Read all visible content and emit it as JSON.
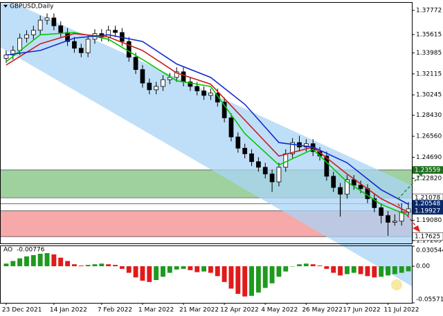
{
  "chart_data": [
    {
      "type": "candlestick",
      "title": "GBPUSD,Daily",
      "categories": [
        "23 Dec 2021",
        null,
        null,
        null,
        null,
        null,
        null,
        "14 Jan 2022",
        null,
        null,
        null,
        null,
        null,
        null,
        "7 Feb 2022",
        null,
        null,
        null,
        null,
        null,
        "1 Mar 2022",
        null,
        null,
        null,
        null,
        null,
        "21 Mar 2022",
        null,
        null,
        null,
        null,
        null,
        "12 Apr 2022",
        null,
        null,
        null,
        null,
        null,
        "4 May 2022",
        null,
        null,
        null,
        null,
        null,
        "26 May 2022",
        null,
        null,
        null,
        null,
        null,
        "17 Jun 2022",
        null,
        null,
        null,
        null,
        null,
        "11 Jul 2022",
        null,
        null,
        null
      ],
      "open": [
        1.335,
        1.338,
        1.342,
        1.353,
        1.356,
        1.36,
        1.369,
        1.371,
        1.364,
        1.358,
        1.35,
        1.344,
        1.34,
        1.352,
        1.357,
        1.354,
        1.36,
        1.358,
        1.35,
        1.336,
        1.325,
        1.313,
        1.307,
        1.31,
        1.316,
        1.318,
        1.323,
        1.314,
        1.31,
        1.306,
        1.302,
        1.304,
        1.296,
        1.282,
        1.265,
        1.255,
        1.25,
        1.243,
        1.238,
        1.232,
        1.225,
        1.238,
        1.25,
        1.26,
        1.256,
        1.259,
        1.252,
        1.248,
        1.23,
        1.22,
        1.214,
        1.227,
        1.222,
        1.219,
        1.21,
        1.202,
        1.195,
        1.189,
        1.19,
        1.198
      ],
      "high": [
        1.342,
        1.346,
        1.357,
        1.36,
        1.364,
        1.373,
        1.375,
        1.375,
        1.368,
        1.362,
        1.354,
        1.348,
        1.356,
        1.361,
        1.361,
        1.364,
        1.364,
        1.362,
        1.354,
        1.34,
        1.329,
        1.317,
        1.314,
        1.32,
        1.322,
        1.327,
        1.327,
        1.318,
        1.314,
        1.31,
        1.308,
        1.308,
        1.3,
        1.286,
        1.269,
        1.259,
        1.254,
        1.247,
        1.242,
        1.236,
        1.242,
        1.254,
        1.264,
        1.266,
        1.263,
        1.263,
        1.256,
        1.252,
        1.234,
        1.224,
        1.231,
        1.231,
        1.226,
        1.223,
        1.214,
        1.206,
        1.199,
        1.196,
        1.206,
        1.207
      ],
      "low": [
        1.331,
        1.334,
        1.338,
        1.349,
        1.352,
        1.356,
        1.365,
        1.36,
        1.354,
        1.346,
        1.34,
        1.336,
        1.336,
        1.348,
        1.35,
        1.35,
        1.354,
        1.346,
        1.332,
        1.321,
        1.309,
        1.303,
        1.303,
        1.306,
        1.312,
        1.314,
        1.31,
        1.306,
        1.302,
        1.298,
        1.298,
        1.292,
        1.278,
        1.261,
        1.251,
        1.246,
        1.239,
        1.234,
        1.228,
        1.216,
        1.221,
        1.234,
        1.246,
        1.252,
        1.252,
        1.248,
        1.244,
        1.226,
        1.216,
        1.194,
        1.21,
        1.218,
        1.215,
        1.206,
        1.198,
        1.188,
        1.177,
        1.186,
        1.186,
        1.195
      ],
      "close": [
        1.338,
        1.342,
        1.353,
        1.356,
        1.36,
        1.369,
        1.371,
        1.364,
        1.358,
        1.35,
        1.344,
        1.34,
        1.352,
        1.357,
        1.354,
        1.36,
        1.358,
        1.35,
        1.336,
        1.325,
        1.313,
        1.307,
        1.31,
        1.316,
        1.318,
        1.323,
        1.314,
        1.31,
        1.306,
        1.302,
        1.304,
        1.296,
        1.282,
        1.265,
        1.255,
        1.25,
        1.243,
        1.238,
        1.232,
        1.225,
        1.238,
        1.25,
        1.26,
        1.256,
        1.259,
        1.252,
        1.248,
        1.23,
        1.22,
        1.214,
        1.227,
        1.222,
        1.219,
        1.21,
        1.202,
        1.195,
        1.189,
        1.19,
        1.198,
        1.201
      ],
      "up_color": "#ffffff",
      "down_color": "#000000",
      "series": [
        {
          "color": "#00c800",
          "x": [
            0,
            5,
            10,
            15,
            20,
            25,
            30,
            35,
            40,
            45,
            50,
            55,
            59
          ],
          "values": [
            1.332,
            1.356,
            1.358,
            1.352,
            1.334,
            1.315,
            1.31,
            1.268,
            1.24,
            1.254,
            1.225,
            1.205,
            1.195
          ]
        },
        {
          "color": "#c81e1e",
          "x": [
            0,
            5,
            10,
            15,
            20,
            25,
            30,
            35,
            40,
            45,
            50,
            55,
            59
          ],
          "values": [
            1.329,
            1.348,
            1.357,
            1.354,
            1.342,
            1.322,
            1.312,
            1.28,
            1.248,
            1.256,
            1.232,
            1.21,
            1.198
          ]
        },
        {
          "color": "#1428d2",
          "x": [
            0,
            5,
            10,
            15,
            20,
            25,
            30,
            35,
            40,
            45,
            50,
            55,
            59
          ],
          "values": [
            1.338,
            1.342,
            1.353,
            1.356,
            1.35,
            1.33,
            1.318,
            1.294,
            1.26,
            1.256,
            1.242,
            1.218,
            1.205
          ]
        }
      ],
      "zones": [
        {
          "from": 1.23559,
          "to": 1.21078,
          "color": "#9fd19f",
          "label_color": "#1e6e1e"
        },
        {
          "from": 1.19927,
          "to": 1.17625,
          "color": "#f7a8a8",
          "label_color": "#0a2a6e"
        }
      ],
      "levels": [
        {
          "value": 1.20548,
          "label_color": "#0a2a6e"
        }
      ],
      "ylim": [
        1.1702,
        1.3851
      ],
      "yticks": [
        1.37772,
        1.35615,
        1.33985,
        1.32115,
        {
          "value": 1.30245,
          "label": "1.30245"
        },
        {
          "value": 1.2843,
          "label": "1.28430"
        },
        {
          "value": 1.2656,
          "label": "1.26560"
        },
        {
          "value": 1.2469,
          "label": "1.24690"
        },
        {
          "value": 1.2282,
          "label": "1.22820"
        },
        {
          "value": 1.1908,
          "label": "1.19080"
        },
        1.17265
      ]
    },
    {
      "type": "bar",
      "title": "AO",
      "value_label": -0.00776,
      "values": [
        0.004,
        0.008,
        0.012,
        0.015,
        0.017,
        0.019,
        0.02,
        0.018,
        0.013,
        0.008,
        0.003,
        0.001,
        0.002,
        0.003,
        0.004,
        0.003,
        0.002,
        -0.004,
        -0.01,
        -0.017,
        -0.022,
        -0.024,
        -0.021,
        -0.016,
        -0.01,
        -0.005,
        -0.004,
        -0.006,
        -0.009,
        -0.008,
        -0.01,
        -0.015,
        -0.024,
        -0.034,
        -0.042,
        -0.046,
        -0.045,
        -0.04,
        -0.033,
        -0.026,
        -0.016,
        -0.008,
        0.0,
        0.003,
        0.004,
        0.003,
        0.001,
        -0.004,
        -0.01,
        -0.014,
        -0.012,
        -0.01,
        -0.012,
        -0.015,
        -0.017,
        -0.016,
        -0.014,
        -0.012,
        -0.01,
        -0.00776
      ],
      "up_color": "#1f9a1f",
      "down_color": "#e01b1b",
      "ylim": [
        -0.055719,
        0.030544
      ],
      "yticks": [
        0.030544,
        {
          "value": 0,
          "label": "0.00"
        },
        -0.055719
      ]
    }
  ]
}
